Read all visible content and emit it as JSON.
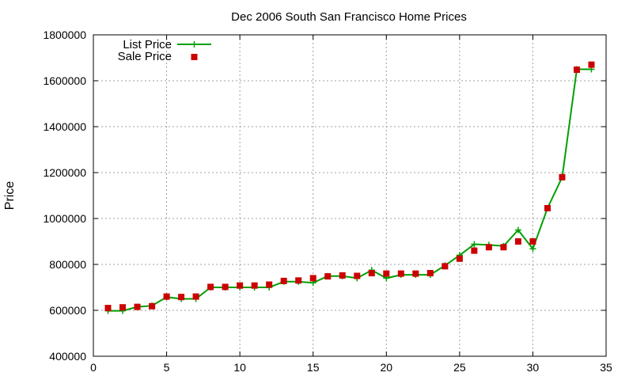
{
  "chart_data": {
    "type": "line",
    "title": "Dec 2006 South San Francisco Home Prices",
    "xlabel": "",
    "ylabel": "Price",
    "xlim": [
      0,
      35
    ],
    "ylim": [
      400000,
      1800000
    ],
    "x_ticks": [
      0,
      5,
      10,
      15,
      20,
      25,
      30,
      35
    ],
    "y_ticks": [
      400000,
      600000,
      800000,
      1000000,
      1200000,
      1400000,
      1600000,
      1800000
    ],
    "grid": true,
    "legend_position": "top-left",
    "series": [
      {
        "name": "List Price",
        "style": "line+cross",
        "color": "#00a000",
        "x": [
          1,
          2,
          3,
          4,
          5,
          6,
          7,
          8,
          9,
          10,
          11,
          12,
          13,
          14,
          15,
          16,
          17,
          18,
          19,
          20,
          21,
          22,
          23,
          24,
          25,
          26,
          27,
          28,
          29,
          30,
          31,
          32,
          33,
          34
        ],
        "values": [
          598000,
          598000,
          615000,
          620000,
          658000,
          650000,
          650000,
          700000,
          700000,
          700000,
          700000,
          700000,
          725000,
          725000,
          720000,
          749000,
          749000,
          740000,
          775000,
          740000,
          755000,
          755000,
          755000,
          795000,
          840000,
          888000,
          885000,
          880000,
          950000,
          868000,
          1045000,
          1180000,
          1650000,
          1650000
        ]
      },
      {
        "name": "Sale Price",
        "style": "square",
        "color": "#cc0000",
        "x": [
          1,
          2,
          3,
          4,
          5,
          6,
          7,
          8,
          9,
          10,
          11,
          12,
          13,
          14,
          15,
          16,
          17,
          18,
          19,
          20,
          21,
          22,
          23,
          24,
          25,
          26,
          27,
          28,
          29,
          30,
          31,
          32,
          33,
          34
        ],
        "values": [
          610000,
          613000,
          615000,
          618000,
          660000,
          658000,
          660000,
          702000,
          702000,
          708000,
          708000,
          712000,
          728000,
          730000,
          740000,
          748000,
          752000,
          750000,
          762000,
          760000,
          760000,
          760000,
          762000,
          792000,
          825000,
          860000,
          875000,
          875000,
          900000,
          900000,
          1045000,
          1180000,
          1648000,
          1670000
        ]
      }
    ]
  }
}
